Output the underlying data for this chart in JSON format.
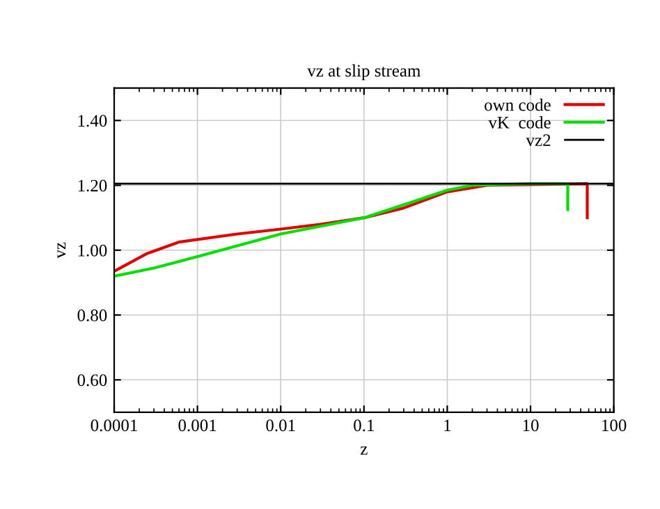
{
  "chart_data": {
    "type": "line",
    "title": "vz at slip stream",
    "xlabel": "z",
    "ylabel": "vz",
    "log": "x",
    "grid": true,
    "legend": "top right",
    "xlim": [
      0.0001,
      100
    ],
    "xticks": [
      0.0001,
      0.001,
      0.01,
      0.1,
      1,
      10,
      100
    ],
    "ylim": [
      0.5,
      1.5
    ],
    "yticks": [
      {
        "value": 0.6,
        "label": "0.60"
      },
      {
        "value": 0.8,
        "label": "0.80"
      },
      {
        "value": 1.0,
        "label": "1.00"
      },
      {
        "value": 1.2,
        "label": "1.20"
      },
      {
        "value": 1.4,
        "label": "1.40"
      }
    ],
    "series": [
      {
        "name": "own code",
        "color": "#e00000",
        "x": [
          0.0001,
          0.00025,
          0.0006,
          0.003,
          0.01,
          0.03,
          0.1,
          0.3,
          1,
          3,
          48,
          48
        ],
        "values": [
          0.935,
          0.99,
          1.025,
          1.05,
          1.065,
          1.08,
          1.1,
          1.13,
          1.18,
          1.2,
          1.205,
          1.1
        ]
      },
      {
        "name": "vK  code",
        "color": "#00e000",
        "x": [
          0.0001,
          0.0003,
          0.001,
          0.01,
          0.1,
          0.3,
          1,
          2,
          10,
          28,
          28
        ],
        "values": [
          0.92,
          0.945,
          0.98,
          1.05,
          1.1,
          1.14,
          1.185,
          1.2,
          1.205,
          1.205,
          1.125
        ]
      },
      {
        "name": "vz2",
        "color": "#000000",
        "x": [
          0.0001,
          100
        ],
        "values": [
          1.205,
          1.205
        ]
      }
    ]
  }
}
